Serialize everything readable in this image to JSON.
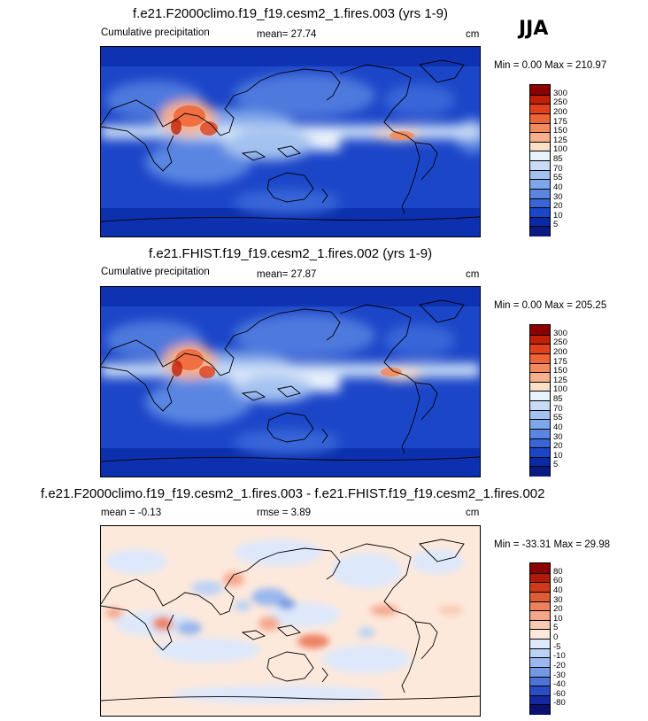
{
  "season": "JJA",
  "panels": [
    {
      "title": "f.e21.F2000climo.f19_f19.cesm2_1.fires.003 (yrs 1-9)",
      "variable": "Cumulative precipitation",
      "stat1": "mean=  27.74",
      "stat2": "",
      "unit": "cm",
      "minmax": "Min =   0.00 Max = 210.97",
      "levels": [
        "300",
        "250",
        "200",
        "175",
        "150",
        "125",
        "100",
        "85",
        "70",
        "55",
        "40",
        "30",
        "20",
        "10",
        "5"
      ],
      "colors": [
        "#8b0000",
        "#c02007",
        "#e0401a",
        "#ef6436",
        "#f38a5c",
        "#f6b08a",
        "#fbe0c8",
        "#eaf2fc",
        "#c8dcf6",
        "#a4c2f0",
        "#7ea6ea",
        "#5a86e2",
        "#3866d8",
        "#1c46c8",
        "#0a2aa8",
        "#0a1a80"
      ]
    },
    {
      "title": "f.e21.FHIST.f19_f19.cesm2_1.fires.002 (yrs 1-9)",
      "variable": "Cumulative precipitation",
      "stat1": "mean=  27.87",
      "stat2": "",
      "unit": "cm",
      "minmax": "Min =   0.00 Max = 205.25",
      "levels": [
        "300",
        "250",
        "200",
        "175",
        "150",
        "125",
        "100",
        "85",
        "70",
        "55",
        "40",
        "30",
        "20",
        "10",
        "5"
      ],
      "colors": [
        "#8b0000",
        "#c02007",
        "#e0401a",
        "#ef6436",
        "#f38a5c",
        "#f6b08a",
        "#fbe0c8",
        "#eaf2fc",
        "#c8dcf6",
        "#a4c2f0",
        "#7ea6ea",
        "#5a86e2",
        "#3866d8",
        "#1c46c8",
        "#0a2aa8",
        "#0a1a80"
      ]
    },
    {
      "title": "f.e21.F2000climo.f19_f19.cesm2_1.fires.003 - f.e21.FHIST.f19_f19.cesm2_1.fires.002",
      "variable": "",
      "stat1": "mean = -0.13",
      "stat2": "rmse =  3.89",
      "unit": "cm",
      "minmax": "Min = -33.31 Max =  29.98",
      "levels": [
        "80",
        "60",
        "40",
        "30",
        "20",
        "10",
        "5",
        "0",
        "-5",
        "-10",
        "-20",
        "-30",
        "-40",
        "-60",
        "-80"
      ],
      "colors": [
        "#8b0000",
        "#b01a0a",
        "#d03a1a",
        "#e05c36",
        "#ec8060",
        "#f4a68a",
        "#f9cbb4",
        "#fde9dc",
        "#dde8fb",
        "#bcd2f5",
        "#9ab8ef",
        "#7398e4",
        "#4e74d8",
        "#2a4cc4",
        "#1428a0",
        "#0a1070"
      ]
    }
  ]
}
